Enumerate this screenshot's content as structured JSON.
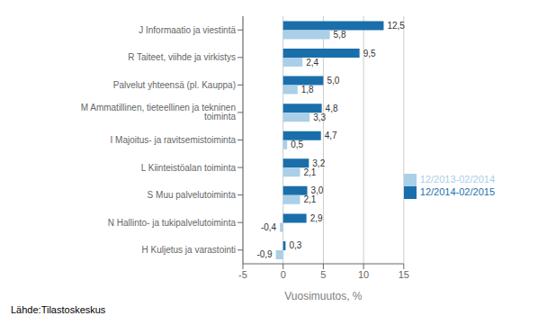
{
  "chart_data": {
    "type": "bar",
    "orientation": "horizontal",
    "categories": [
      "J Informaatio ja viestintä",
      "R Taiteet, viihde ja virkistys",
      "Palvelut yhteensä (pl. Kauppa)",
      "M Ammatillinen, tieteellinen ja tekninen toiminta",
      "I Majoitus- ja ravitsemistoiminta",
      "L Kiinteistöalan toiminta",
      "S Muu palvelutoiminta",
      "N Hallinto- ja tukipalvelutoiminta",
      "H Kuljetus ja varastointi"
    ],
    "series": [
      {
        "name": "12/2014-02/2015",
        "color": "#1a6fab",
        "values": [
          12.5,
          9.5,
          5.0,
          4.8,
          4.7,
          3.2,
          3.0,
          2.9,
          0.3
        ],
        "value_labels": [
          "12,5",
          "9,5",
          "5,0",
          "4,8",
          "4,7",
          "3,2",
          "3,0",
          "2,9",
          "0,3"
        ]
      },
      {
        "name": "12/2013-02/2014",
        "color": "#aacfe8",
        "values": [
          5.8,
          2.4,
          1.8,
          3.3,
          0.5,
          2.1,
          2.1,
          -0.4,
          -0.9
        ],
        "value_labels": [
          "5,8",
          "2,4",
          "1,8",
          "3,3",
          "0,5",
          "2,1",
          "2,1",
          "-0,4",
          "-0,9"
        ]
      }
    ],
    "xlabel": "Vuosimuutos, %",
    "xlim": [
      -5,
      15
    ],
    "xticks": [
      -5,
      0,
      5,
      10,
      15
    ],
    "grid": true,
    "legend": "right",
    "data_labels": true,
    "annotations": [
      "Lähde:Tilastoskeskus"
    ]
  }
}
